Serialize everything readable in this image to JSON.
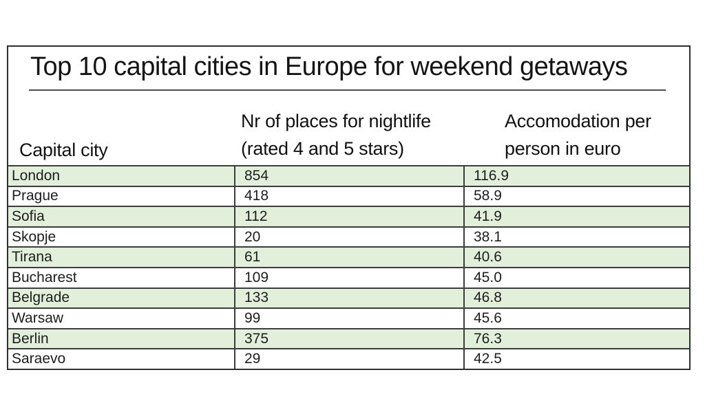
{
  "page": {
    "title": "Top 10 capital cities in Europe for weekend getaways"
  },
  "header": {
    "col1": "Capital city",
    "col2_line1": "Nr of places for nightlife",
    "col2_line2": "(rated 4 and 5 stars)",
    "col3_line1": "Accomodation per",
    "col3_line2": "person in euro"
  },
  "table": {
    "rows": [
      {
        "city": "London",
        "nightlife": "854",
        "accommodation": "116.9"
      },
      {
        "city": "Prague",
        "nightlife": "418",
        "accommodation": "58.9"
      },
      {
        "city": "Sofia",
        "nightlife": "112",
        "accommodation": "41.9"
      },
      {
        "city": "Skopje",
        "nightlife": "20",
        "accommodation": "38.1"
      },
      {
        "city": "Tirana",
        "nightlife": "61",
        "accommodation": "40.6"
      },
      {
        "city": "Bucharest",
        "nightlife": "109",
        "accommodation": "45.0"
      },
      {
        "city": "Belgrade",
        "nightlife": "133",
        "accommodation": "46.8"
      },
      {
        "city": "Warsaw",
        "nightlife": "99",
        "accommodation": "45.6"
      },
      {
        "city": "Berlin",
        "nightlife": "375",
        "accommodation": "76.3"
      },
      {
        "city": "Saraevo",
        "nightlife": "29",
        "accommodation": "42.5"
      }
    ]
  },
  "colors": {
    "row_alt_green": "#e2efda",
    "border": "#2f2f2f",
    "grid_line": "#3c3c3c",
    "title_underline": "#4d4d4d",
    "text": "#1d1d1d"
  },
  "chart_data": {
    "type": "table",
    "title": "Top 10 capital cities in Europe for weekend getaways",
    "columns": [
      "Capital city",
      "Nr of places for nightlife (rated 4 and 5 stars)",
      "Accomodation per person in euro"
    ],
    "rows": [
      [
        "London",
        854,
        116.9
      ],
      [
        "Prague",
        418,
        58.9
      ],
      [
        "Sofia",
        112,
        41.9
      ],
      [
        "Skopje",
        20,
        38.1
      ],
      [
        "Tirana",
        61,
        40.6
      ],
      [
        "Bucharest",
        109,
        45.0
      ],
      [
        "Belgrade",
        133,
        46.8
      ],
      [
        "Warsaw",
        99,
        45.6
      ],
      [
        "Berlin",
        375,
        76.3
      ],
      [
        "Saraevo",
        29,
        42.5
      ]
    ],
    "layout": {
      "alternating_row_fill": "#e2efda",
      "gridlines": true,
      "header_vertical_lines": false
    }
  }
}
